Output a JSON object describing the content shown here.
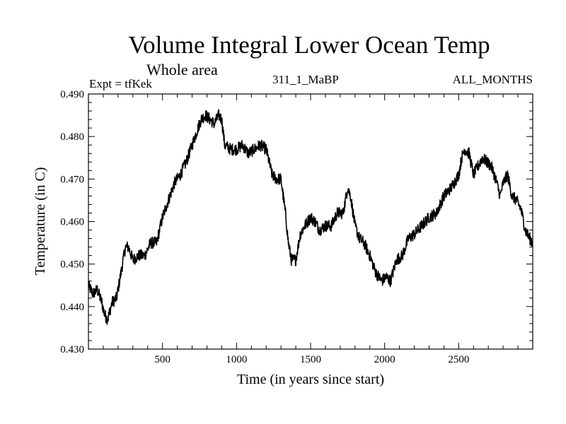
{
  "chart_data": {
    "type": "line",
    "title": "Volume Integral Lower Ocean Temp",
    "subtitle": "Whole area",
    "left_annotation": "Expt = tfKek",
    "center_annotation": "311_1_MaBP",
    "right_annotation": "ALL_MONTHS",
    "xlabel": "Time (in years since start)",
    "ylabel": "Temperature (in C)",
    "xlim": [
      0,
      3000
    ],
    "ylim": [
      0.43,
      0.49
    ],
    "xticks": [
      500,
      1000,
      1500,
      2000,
      2500
    ],
    "yticks": [
      "0.430",
      "0.440",
      "0.450",
      "0.460",
      "0.470",
      "0.480",
      "0.490"
    ],
    "grid": false,
    "series": [
      {
        "x": [
          0,
          30,
          60,
          90,
          110,
          130,
          160,
          190,
          220,
          250,
          270,
          300,
          340,
          380,
          420,
          460,
          500,
          540,
          580,
          620,
          660,
          700,
          730,
          760,
          790,
          820,
          850,
          880,
          900,
          920,
          960,
          1000,
          1040,
          1080,
          1120,
          1160,
          1200,
          1240,
          1270,
          1300,
          1330,
          1350,
          1370,
          1400,
          1430,
          1460,
          1500,
          1530,
          1560,
          1600,
          1640,
          1680,
          1720,
          1750,
          1770,
          1800,
          1830,
          1860,
          1900,
          1940,
          1980,
          2010,
          2040,
          2080,
          2120,
          2160,
          2200,
          2250,
          2300,
          2350,
          2400,
          2450,
          2500,
          2520,
          2540,
          2570,
          2600,
          2630,
          2660,
          2690,
          2720,
          2750,
          2780,
          2800,
          2830,
          2860,
          2890,
          2920,
          2950,
          2980,
          3000
        ],
        "y": [
          0.445,
          0.443,
          0.444,
          0.441,
          0.438,
          0.437,
          0.441,
          0.442,
          0.448,
          0.454,
          0.454,
          0.451,
          0.452,
          0.452,
          0.455,
          0.455,
          0.461,
          0.465,
          0.469,
          0.471,
          0.474,
          0.478,
          0.481,
          0.484,
          0.485,
          0.484,
          0.483,
          0.485,
          0.484,
          0.478,
          0.477,
          0.477,
          0.478,
          0.476,
          0.477,
          0.478,
          0.477,
          0.471,
          0.47,
          0.47,
          0.462,
          0.455,
          0.451,
          0.451,
          0.457,
          0.459,
          0.461,
          0.46,
          0.458,
          0.459,
          0.459,
          0.462,
          0.462,
          0.468,
          0.466,
          0.459,
          0.456,
          0.455,
          0.452,
          0.448,
          0.446,
          0.447,
          0.446,
          0.451,
          0.452,
          0.456,
          0.457,
          0.459,
          0.461,
          0.462,
          0.466,
          0.468,
          0.471,
          0.475,
          0.477,
          0.476,
          0.471,
          0.473,
          0.475,
          0.474,
          0.473,
          0.47,
          0.466,
          0.469,
          0.471,
          0.466,
          0.465,
          0.463,
          0.458,
          0.456,
          0.455
        ]
      }
    ]
  }
}
